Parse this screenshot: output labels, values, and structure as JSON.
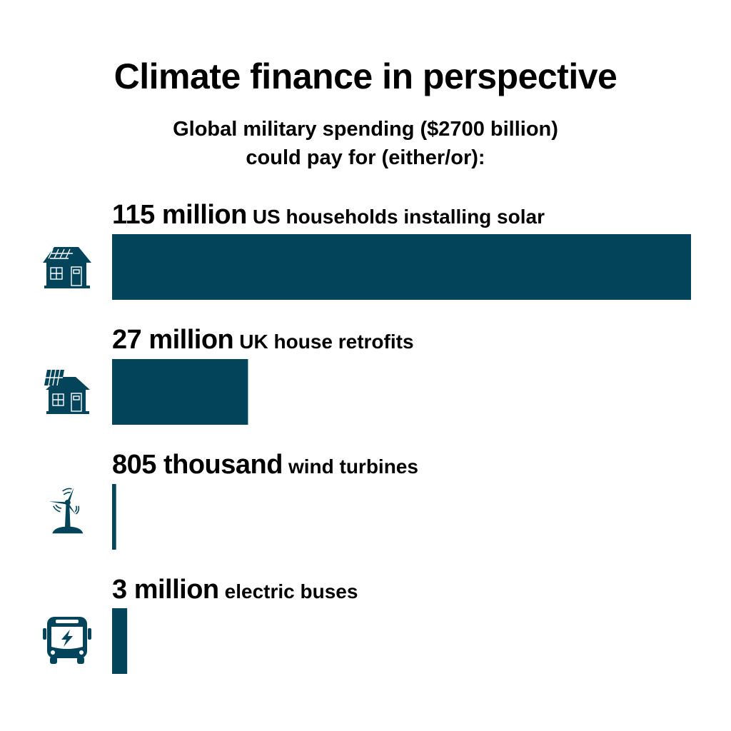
{
  "chart_data": {
    "type": "bar",
    "orientation": "horizontal",
    "title": "Climate finance in perspective",
    "subtitle": [
      "Global military spending ($2700 billion)",
      "could pay for (either/or):"
    ],
    "categories": [
      "US households installing solar",
      "UK house retrofits",
      "wind turbines",
      "electric buses"
    ],
    "value_labels": [
      "115 million",
      "27 million",
      "805 thousand",
      "3 million"
    ],
    "values": [
      115000000,
      27000000,
      805000,
      3000000
    ],
    "icons": [
      "solar-house-icon",
      "solar-house-icon",
      "wind-turbine-icon",
      "electric-bus-icon"
    ],
    "bar_color": "#03445A",
    "grid": false
  }
}
